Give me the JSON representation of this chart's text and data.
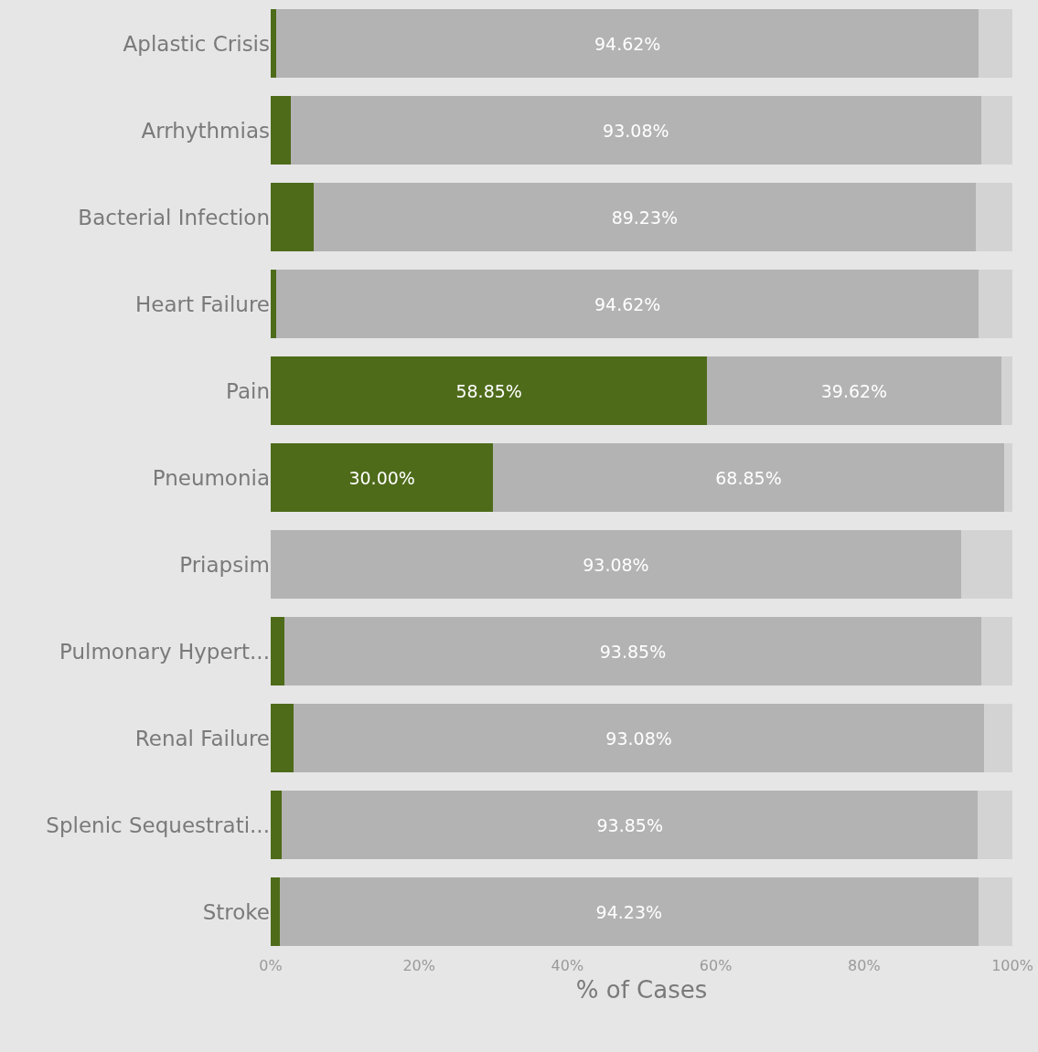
{
  "chart_data": {
    "type": "bar",
    "orientation": "horizontal",
    "stacked": true,
    "xlabel": "% of Cases",
    "categories": [
      "Aplastic Crisis",
      "Arrhythmias",
      "Bacterial Infection",
      "Heart Failure",
      "Pain",
      "Pneumonia",
      "Priapsim",
      "Pulmonary Hypert...",
      "Renal Failure",
      "Splenic Sequestrati...",
      "Stroke"
    ],
    "series": [
      {
        "color": "#4e6b1a",
        "values": [
          0.8,
          2.7,
          5.8,
          0.8,
          58.85,
          30.0,
          0,
          1.9,
          3.1,
          1.5,
          1.2
        ],
        "value_labels": [
          null,
          null,
          null,
          null,
          "58.85%",
          "30.00%",
          null,
          null,
          null,
          null,
          null
        ]
      },
      {
        "color": "#b3b3b3",
        "values": [
          94.62,
          93.08,
          89.23,
          94.62,
          39.62,
          68.85,
          93.08,
          93.85,
          93.08,
          93.85,
          94.23
        ],
        "value_labels": [
          "94.62%",
          "93.08%",
          "89.23%",
          "94.62%",
          "39.62%",
          "68.85%",
          "93.08%",
          "93.85%",
          "93.08%",
          "93.85%",
          "94.23%"
        ]
      },
      {
        "color": "#d3d3d3",
        "values": [
          4.6,
          4.2,
          5.0,
          4.6,
          1.5,
          1.2,
          6.9,
          4.2,
          3.8,
          4.6,
          4.6
        ]
      }
    ],
    "xlim": [
      0,
      100
    ],
    "xticks": [
      {
        "value": 0,
        "label": "0%"
      },
      {
        "value": 20,
        "label": "20%"
      },
      {
        "value": 40,
        "label": "40%"
      },
      {
        "value": 60,
        "label": "60%"
      },
      {
        "value": 80,
        "label": "80%"
      },
      {
        "value": 100,
        "label": "100%"
      }
    ],
    "grid": false
  }
}
